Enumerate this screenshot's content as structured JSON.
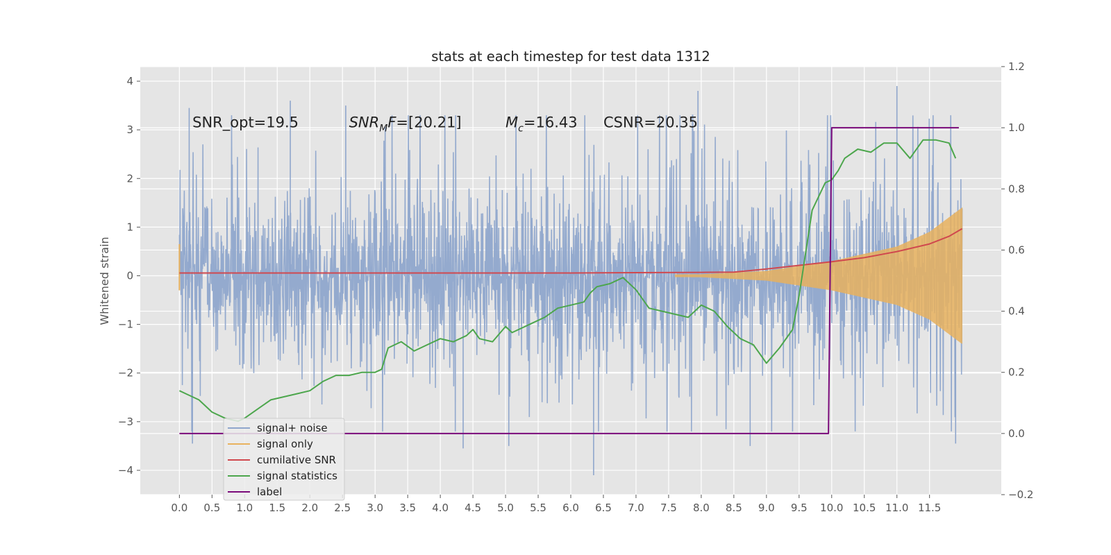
{
  "chart_data": {
    "type": "line",
    "title": "stats at each timestep for test data 1312",
    "xlabel": "",
    "ylabel": "Whitened strain",
    "xlim": [
      -0.6,
      12.6
    ],
    "ylim": [
      -4.5,
      4.3
    ],
    "y2lim": [
      -0.2,
      1.2
    ],
    "x_ticks": [
      "0.0",
      "0.5",
      "1.0",
      "1.5",
      "2.0",
      "2.5",
      "3.0",
      "3.5",
      "4.0",
      "4.5",
      "5.0",
      "5.5",
      "6.0",
      "6.5",
      "7.0",
      "7.5",
      "8.0",
      "8.5",
      "9.0",
      "9.5",
      "10.0",
      "10.5",
      "11.0",
      "11.5"
    ],
    "y_ticks": [
      "4",
      "3",
      "2",
      "1",
      "0",
      "−1",
      "−2",
      "−3",
      "−4"
    ],
    "y2_ticks": [
      "1.2",
      "1.0",
      "0.8",
      "0.6",
      "0.4",
      "0.2",
      "0.0",
      "−0.2"
    ],
    "grid": true,
    "legend_position": "lower-left",
    "annotations": [
      {
        "text": "SNR_opt=19.5",
        "x": 0.2,
        "y": 3.05
      },
      {
        "base": "SNR",
        "sub": "M",
        "rest": "F=[20.21]",
        "x": 2.6,
        "y": 3.05
      },
      {
        "base": "M",
        "sub": "c",
        "rest": "=16.43",
        "x": 5.0,
        "y": 3.05
      },
      {
        "text": "CSNR=20.35",
        "x": 6.5,
        "y": 3.05
      }
    ],
    "series": [
      {
        "name": "signal+ noise",
        "color": "#8fa6cc",
        "axis": "left",
        "x_range": [
          0,
          12
        ],
        "envelope_mean": 1.6,
        "peaks": [
          [
            0.15,
            3.45
          ],
          [
            0.2,
            -3.45
          ],
          [
            1.7,
            3.6
          ],
          [
            2.55,
            3.5
          ],
          [
            4.35,
            -3.55
          ],
          [
            5.05,
            -3.5
          ],
          [
            6.35,
            -4.1
          ],
          [
            7.95,
            3.8
          ],
          [
            8.75,
            -3.5
          ],
          [
            11.0,
            3.9
          ],
          [
            11.9,
            -3.45
          ]
        ]
      },
      {
        "name": "signal only",
        "color": "#e8b25e",
        "axis": "left",
        "x_range": [
          0,
          12
        ],
        "envelope": [
          [
            0,
            0.0
          ],
          [
            8.0,
            0.03
          ],
          [
            9.0,
            0.1
          ],
          [
            10.0,
            0.3
          ],
          [
            11.0,
            0.6
          ],
          [
            11.5,
            0.9
          ],
          [
            12.0,
            1.4
          ]
        ]
      },
      {
        "name": "cumilative SNR",
        "color": "#d0484e",
        "axis": "right",
        "x": [
          0,
          1,
          2,
          3,
          4,
          5,
          6,
          7,
          8,
          8.5,
          9,
          9.5,
          10,
          10.5,
          11,
          11.5,
          11.8,
          12.0
        ],
        "y": [
          0.525,
          0.525,
          0.525,
          0.525,
          0.525,
          0.525,
          0.525,
          0.526,
          0.527,
          0.528,
          0.538,
          0.55,
          0.562,
          0.575,
          0.595,
          0.62,
          0.645,
          0.67
        ]
      },
      {
        "name": "signal statistics",
        "color": "#4ca64c",
        "axis": "right",
        "x": [
          0,
          0.1,
          0.2,
          0.3,
          0.5,
          0.7,
          0.9,
          1.0,
          1.2,
          1.4,
          1.6,
          1.8,
          2.0,
          2.2,
          2.4,
          2.6,
          2.8,
          3.0,
          3.1,
          3.2,
          3.3,
          3.4,
          3.6,
          3.8,
          4.0,
          4.2,
          4.4,
          4.5,
          4.6,
          4.8,
          5.0,
          5.1,
          5.2,
          5.4,
          5.6,
          5.8,
          6.0,
          6.2,
          6.3,
          6.4,
          6.6,
          6.8,
          7.0,
          7.2,
          7.4,
          7.6,
          7.8,
          8.0,
          8.2,
          8.4,
          8.6,
          8.8,
          9.0,
          9.2,
          9.4,
          9.5,
          9.7,
          9.9,
          10.0,
          10.1,
          10.2,
          10.4,
          10.6,
          10.8,
          11.0,
          11.2,
          11.4,
          11.6,
          11.8,
          11.9
        ],
        "y": [
          0.14,
          0.13,
          0.12,
          0.11,
          0.07,
          0.05,
          0.04,
          0.05,
          0.08,
          0.11,
          0.12,
          0.13,
          0.14,
          0.17,
          0.19,
          0.19,
          0.2,
          0.2,
          0.21,
          0.28,
          0.29,
          0.3,
          0.27,
          0.29,
          0.31,
          0.3,
          0.32,
          0.34,
          0.31,
          0.3,
          0.35,
          0.33,
          0.34,
          0.36,
          0.38,
          0.41,
          0.42,
          0.43,
          0.46,
          0.48,
          0.49,
          0.51,
          0.47,
          0.41,
          0.4,
          0.39,
          0.38,
          0.42,
          0.4,
          0.35,
          0.31,
          0.29,
          0.23,
          0.28,
          0.34,
          0.45,
          0.73,
          0.82,
          0.83,
          0.86,
          0.9,
          0.93,
          0.92,
          0.95,
          0.95,
          0.9,
          0.96,
          0.96,
          0.95,
          0.9
        ]
      },
      {
        "name": "label",
        "color": "#7a0a7a",
        "axis": "right",
        "x": [
          0,
          9.95,
          10.0,
          11.95
        ],
        "y": [
          0.0,
          0.0,
          1.0,
          1.0
        ]
      }
    ]
  }
}
